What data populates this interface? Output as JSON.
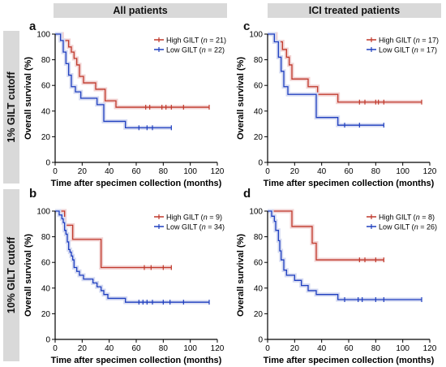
{
  "headers": {
    "col_left": "All patients",
    "col_right": "ICI treated patients",
    "row_top": "1% GILT cutoff",
    "row_bottom": "10% GILT cutoff"
  },
  "colors": {
    "high": "#c0392b",
    "low": "#1f3fbf",
    "high_band": "#f2d3d3",
    "low_band": "#d6dbf2",
    "header_bg": "#d9d9d9"
  },
  "chart_data": [
    {
      "panel": "a",
      "type": "line",
      "step": true,
      "xlabel": "Time after specimen collection (months)",
      "ylabel": "Overall survival (%)",
      "xlim": [
        0,
        120
      ],
      "ylim": [
        0,
        100
      ],
      "xticks": [
        "0",
        "20",
        "40",
        "60",
        "80",
        "100",
        "120"
      ],
      "yticks": [
        "0",
        "20",
        "40",
        "60",
        "80",
        "100"
      ],
      "series": [
        {
          "name": "High GILT",
          "n": "21",
          "key": "high",
          "x": [
            0,
            5,
            10,
            12,
            14,
            16,
            18,
            21,
            30,
            37,
            45,
            114
          ],
          "y": [
            100,
            95,
            90,
            86,
            81,
            76,
            67,
            62,
            57,
            48,
            43,
            43
          ],
          "censor": [
            [
              67,
              43
            ],
            [
              70,
              43
            ],
            [
              79,
              43
            ],
            [
              82,
              43
            ],
            [
              86,
              43
            ],
            [
              95,
              43
            ],
            [
              114,
              43
            ]
          ]
        },
        {
          "name": "Low GILT",
          "n": "22",
          "key": "low",
          "x": [
            0,
            4,
            6,
            8,
            10,
            12,
            15,
            19,
            31,
            36,
            52,
            86
          ],
          "y": [
            100,
            95,
            86,
            77,
            68,
            59,
            55,
            50,
            45,
            32,
            27,
            27
          ],
          "censor": [
            [
              62,
              27
            ],
            [
              68,
              27
            ],
            [
              72,
              27
            ],
            [
              86,
              27
            ]
          ]
        }
      ]
    },
    {
      "panel": "c",
      "type": "line",
      "step": true,
      "xlabel": "Time after specimen collection (months)",
      "ylabel": "Overall survival (%)",
      "xlim": [
        0,
        120
      ],
      "ylim": [
        0,
        100
      ],
      "xticks": [
        "0",
        "20",
        "40",
        "60",
        "80",
        "100",
        "120"
      ],
      "yticks": [
        "0",
        "20",
        "40",
        "60",
        "80",
        "100"
      ],
      "series": [
        {
          "name": "High GILT",
          "n": "17",
          "key": "high",
          "x": [
            0,
            6,
            11,
            14,
            16,
            18,
            30,
            37,
            52,
            114
          ],
          "y": [
            100,
            94,
            88,
            82,
            76,
            65,
            59,
            53,
            47,
            47
          ],
          "censor": [
            [
              68,
              47
            ],
            [
              72,
              47
            ],
            [
              80,
              47
            ],
            [
              82,
              47
            ],
            [
              86,
              47
            ],
            [
              114,
              47
            ]
          ]
        },
        {
          "name": "Low GILT",
          "n": "17",
          "key": "low",
          "x": [
            0,
            5,
            8,
            10,
            12,
            15,
            36,
            52,
            86
          ],
          "y": [
            100,
            94,
            82,
            71,
            59,
            53,
            35,
            29,
            29
          ],
          "censor": [
            [
              57,
              29
            ],
            [
              68,
              29
            ],
            [
              86,
              29
            ]
          ]
        }
      ]
    },
    {
      "panel": "b",
      "type": "line",
      "step": true,
      "xlabel": "Time after specimen collection (months)",
      "ylabel": "Overall survival (%)",
      "xlim": [
        0,
        120
      ],
      "ylim": [
        0,
        100
      ],
      "xticks": [
        "0",
        "20",
        "40",
        "60",
        "80",
        "100",
        "120"
      ],
      "yticks": [
        "0",
        "20",
        "40",
        "60",
        "80",
        "100"
      ],
      "series": [
        {
          "name": "High GILT",
          "n": "9",
          "key": "high",
          "x": [
            0,
            7,
            13,
            34,
            86
          ],
          "y": [
            100,
            89,
            78,
            56,
            56
          ],
          "censor": [
            [
              66,
              56
            ],
            [
              71,
              56
            ],
            [
              80,
              56
            ],
            [
              86,
              56
            ]
          ]
        },
        {
          "name": "Low GILT",
          "n": "34",
          "key": "low",
          "x": [
            0,
            3,
            5,
            6,
            7,
            8,
            9,
            10,
            11,
            12,
            13,
            14,
            16,
            18,
            21,
            28,
            31,
            34,
            36,
            39,
            52,
            114
          ],
          "y": [
            100,
            97,
            94,
            91,
            85,
            82,
            76,
            70,
            68,
            65,
            62,
            56,
            53,
            50,
            47,
            44,
            41,
            38,
            35,
            32,
            29,
            29
          ],
          "censor": [
            [
              62,
              29
            ],
            [
              65,
              29
            ],
            [
              68,
              29
            ],
            [
              72,
              29
            ],
            [
              80,
              29
            ],
            [
              85,
              29
            ],
            [
              95,
              29
            ],
            [
              114,
              29
            ]
          ]
        }
      ]
    },
    {
      "panel": "d",
      "type": "line",
      "step": true,
      "xlabel": "Time after specimen collection (months)",
      "ylabel": "Overall survival (%)",
      "xlim": [
        0,
        120
      ],
      "ylim": [
        0,
        100
      ],
      "xticks": [
        "0",
        "20",
        "40",
        "60",
        "80",
        "100",
        "120"
      ],
      "yticks": [
        "0",
        "20",
        "40",
        "60",
        "80",
        "100"
      ],
      "series": [
        {
          "name": "High GILT",
          "n": "8",
          "key": "high",
          "x": [
            0,
            18,
            33,
            36,
            86
          ],
          "y": [
            100,
            88,
            75,
            62,
            62
          ],
          "censor": [
            [
              68,
              62
            ],
            [
              72,
              62
            ],
            [
              80,
              62
            ],
            [
              86,
              62
            ]
          ]
        },
        {
          "name": "Low GILT",
          "n": "26",
          "key": "low",
          "x": [
            0,
            3,
            5,
            6,
            8,
            9,
            10,
            12,
            14,
            20,
            25,
            30,
            36,
            52,
            114
          ],
          "y": [
            100,
            96,
            92,
            85,
            77,
            69,
            62,
            54,
            50,
            46,
            42,
            38,
            35,
            31,
            31
          ],
          "censor": [
            [
              57,
              31
            ],
            [
              67,
              31
            ],
            [
              70,
              31
            ],
            [
              80,
              31
            ],
            [
              86,
              31
            ],
            [
              114,
              31
            ]
          ]
        }
      ]
    }
  ]
}
